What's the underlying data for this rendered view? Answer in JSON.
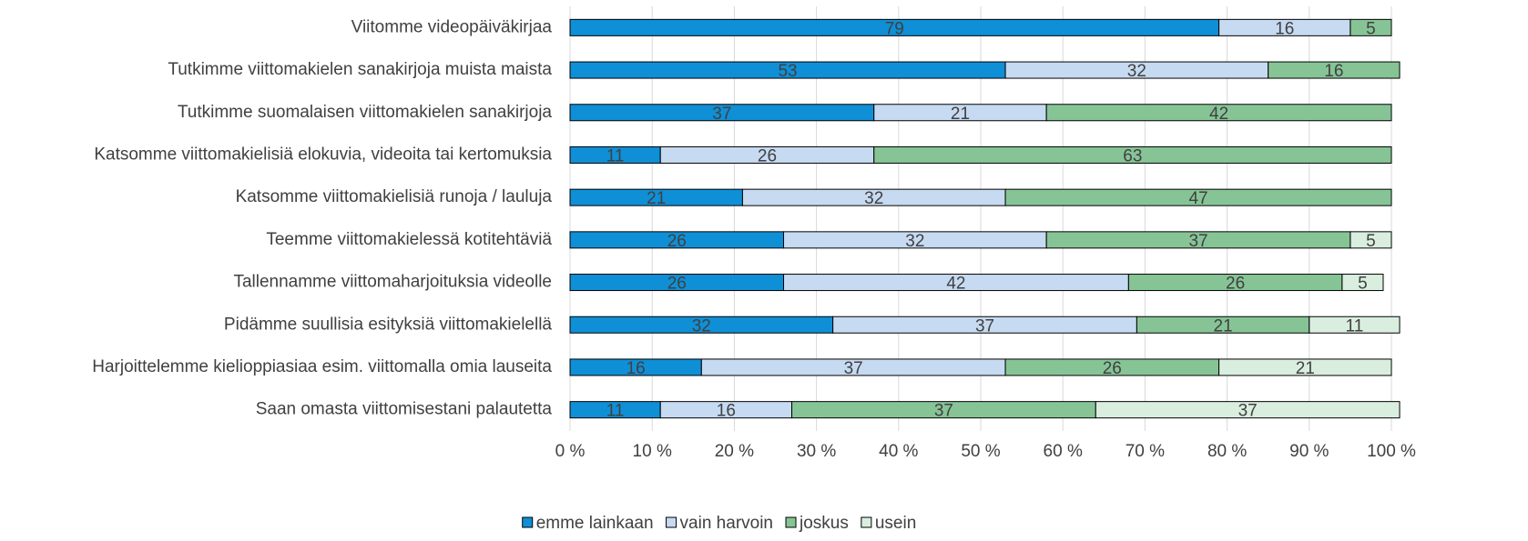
{
  "chart_data": {
    "type": "stacked_barh",
    "categories": [
      "Viitomme videopäiväkirjaa",
      "Tutkimme viittomakielen sanakirjoja muista maista",
      "Tutkimme suomalaisen viittomakielen sanakirjoja",
      "Katsomme viittomakielisiä elokuvia, videoita tai kertomuksia",
      "Katsomme viittomakielisiä runoja / lauluja",
      "Teemme viittomakielessä kotitehtäviä",
      "Tallennamme viittomaharjoituksia videolle",
      "Pidämme suullisia esityksiä viittomakielellä",
      "Harjoittelemme kielioppiasiaa esim. viittomalla omia lauseita",
      "Saan omasta viittomisestani palautetta"
    ],
    "series": [
      {
        "name": "emme lainkaan",
        "color": "#0f8fd6",
        "values": [
          79,
          53,
          37,
          11,
          21,
          26,
          26,
          32,
          16,
          11
        ]
      },
      {
        "name": "vain harvoin",
        "color": "#c6daf1",
        "values": [
          16,
          32,
          21,
          26,
          32,
          32,
          42,
          37,
          37,
          16
        ]
      },
      {
        "name": "joskus",
        "color": "#86c496",
        "values": [
          5,
          16,
          42,
          63,
          47,
          37,
          26,
          21,
          26,
          37
        ]
      },
      {
        "name": "usein",
        "color": "#d9eedf",
        "values": [
          null,
          null,
          null,
          null,
          null,
          5,
          5,
          11,
          21,
          37
        ]
      }
    ],
    "xlim": [
      0,
      100
    ],
    "xticks": [
      {
        "value": 0,
        "label": "0 %"
      },
      {
        "value": 10,
        "label": "10 %"
      },
      {
        "value": 20,
        "label": "20 %"
      },
      {
        "value": 30,
        "label": "30 %"
      },
      {
        "value": 40,
        "label": "40 %"
      },
      {
        "value": 50,
        "label": "50 %"
      },
      {
        "value": 60,
        "label": "60 %"
      },
      {
        "value": 70,
        "label": "70 %"
      },
      {
        "value": 80,
        "label": "80 %"
      },
      {
        "value": 90,
        "label": "90 %"
      },
      {
        "value": 100,
        "label": "100 %"
      }
    ],
    "grid": true,
    "legend": "bottom"
  }
}
